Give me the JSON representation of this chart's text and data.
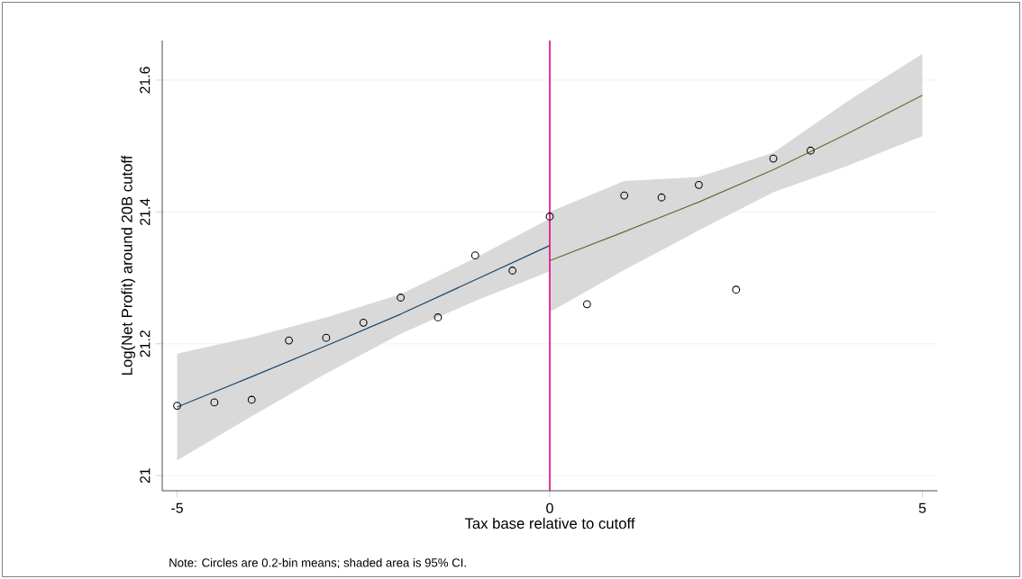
{
  "chart_data": {
    "type": "scatter",
    "xlabel": "Tax base relative to cutoff",
    "ylabel": "Log(Net Profit) around 20B cutoff",
    "annotations": [
      "Note: Circles are 0.2-bin means; shaded area is 95% CI."
    ],
    "xlim": [
      -5.2,
      5.2
    ],
    "ylim": [
      20.977,
      21.66
    ],
    "xticks": [
      -5,
      0,
      5
    ],
    "yticks": [
      21,
      21.2,
      21.4,
      21.6
    ],
    "grid": "y",
    "series": [
      {
        "marker": "circle",
        "color": "#000000",
        "x": [
          -5,
          -4.5,
          -4,
          -3.5,
          -3,
          -2.5,
          -2,
          -1.5,
          -1,
          -0.5,
          0,
          0.5,
          1,
          1.5,
          2,
          2.5,
          3,
          3.5
        ],
        "values": [
          21.106,
          21.111,
          21.115,
          21.205,
          21.209,
          21.232,
          21.27,
          21.24,
          21.334,
          21.311,
          21.393,
          21.26,
          21.425,
          21.422,
          21.441,
          21.282,
          21.481,
          21.493
        ]
      },
      {
        "type": "line",
        "color": "#1a476f",
        "x": [
          -5,
          -4,
          -3,
          -2,
          -1,
          0
        ],
        "values": [
          21.104,
          21.15,
          21.197,
          21.245,
          21.297,
          21.349
        ],
        "lower": [
          21.023,
          21.09,
          21.155,
          21.215,
          21.265,
          21.31
        ],
        "upper": [
          21.185,
          21.21,
          21.24,
          21.275,
          21.33,
          21.39
        ]
      },
      {
        "type": "line",
        "color": "#55752f",
        "x": [
          0,
          1,
          2,
          3,
          4,
          5
        ],
        "values": [
          21.326,
          21.37,
          21.415,
          21.464,
          21.519,
          21.577
        ],
        "lower": [
          21.248,
          21.312,
          21.372,
          21.43,
          21.47,
          21.515
        ],
        "upper": [
          21.4,
          21.447,
          21.453,
          21.49,
          21.568,
          21.64
        ]
      }
    ],
    "ref_lines": [
      {
        "axis": "x",
        "value": 0,
        "color": "#e6007e"
      }
    ]
  }
}
